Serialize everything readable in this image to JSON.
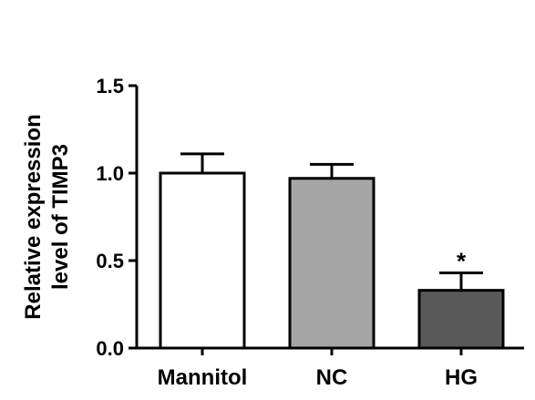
{
  "chart_data": {
    "type": "bar",
    "title": "",
    "xlabel": "",
    "ylabel": [
      "Relative expression",
      "level of TIMP3"
    ],
    "categories": [
      "Mannitol",
      "NC",
      "HG"
    ],
    "values": [
      1.0,
      0.97,
      0.33
    ],
    "errors": [
      0.11,
      0.08,
      0.1
    ],
    "significance": [
      "",
      "",
      "*"
    ],
    "bar_colors": [
      "#ffffff",
      "#a6a6a6",
      "#595959"
    ],
    "ylim": [
      0,
      1.5
    ],
    "yticks": [
      0.0,
      0.5,
      1.0,
      1.5
    ],
    "ytick_labels": [
      "0.0",
      "0.5",
      "1.0",
      "1.5"
    ],
    "grid": false,
    "legend": "none"
  }
}
